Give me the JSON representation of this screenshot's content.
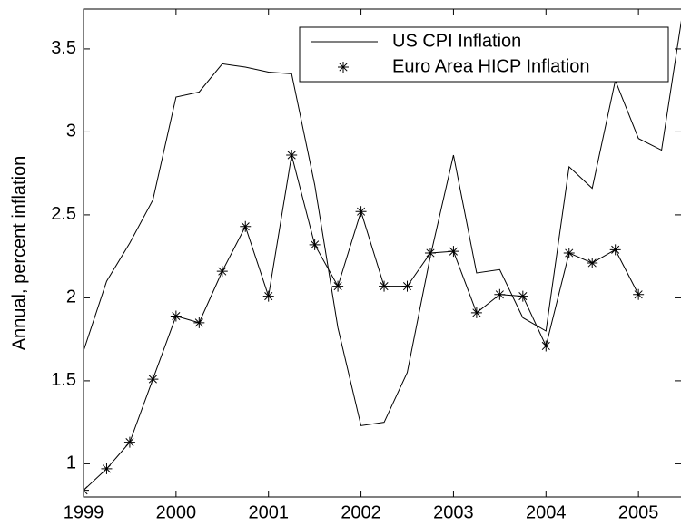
{
  "chart_data": {
    "type": "line",
    "y_label": "Annual, percent inflation",
    "xlim": [
      1999,
      2005.46
    ],
    "ylim": [
      0.8,
      3.74
    ],
    "xticks": [
      1999,
      2000,
      2001,
      2002,
      2003,
      2004,
      2005
    ],
    "yticks": [
      1,
      1.5,
      2,
      2.5,
      3,
      3.5
    ],
    "grid": false,
    "legend": "upper right",
    "series": [
      {
        "name": "US CPI Inflation",
        "color": "#000000",
        "marker": "none",
        "x": [
          1999,
          1999.25,
          1999.5,
          1999.75,
          2000,
          2000.25,
          2000.5,
          2000.75,
          2001,
          2001.25,
          2001.5,
          2001.75,
          2002,
          2002.25,
          2002.5,
          2002.75,
          2003,
          2003.25,
          2003.5,
          2003.75,
          2004,
          2004.25,
          2004.5,
          2004.75,
          2005,
          2005.25,
          2005.5
        ],
        "values": [
          1.68,
          2.1,
          2.33,
          2.59,
          3.21,
          3.24,
          3.41,
          3.39,
          3.36,
          3.35,
          2.68,
          1.82,
          1.23,
          1.25,
          1.55,
          2.25,
          2.86,
          2.15,
          2.17,
          1.88,
          1.8,
          2.79,
          2.66,
          3.31,
          2.96,
          2.89,
          3.8
        ]
      },
      {
        "name": "Euro Area HICP Inflation",
        "color": "#000000",
        "marker": "asterisk",
        "x": [
          1999,
          1999.25,
          1999.5,
          1999.75,
          2000,
          2000.25,
          2000.5,
          2000.75,
          2001,
          2001.25,
          2001.5,
          2001.75,
          2002,
          2002.25,
          2002.5,
          2002.75,
          2003,
          2003.25,
          2003.5,
          2003.75,
          2004,
          2004.25,
          2004.5,
          2004.75,
          2005
        ],
        "values": [
          0.84,
          0.97,
          1.13,
          1.51,
          1.89,
          1.85,
          2.16,
          2.43,
          2.01,
          2.86,
          2.32,
          2.07,
          2.52,
          2.07,
          2.07,
          2.27,
          2.28,
          1.91,
          2.02,
          2.01,
          1.71,
          2.27,
          2.21,
          2.29,
          2.02
        ]
      }
    ]
  }
}
